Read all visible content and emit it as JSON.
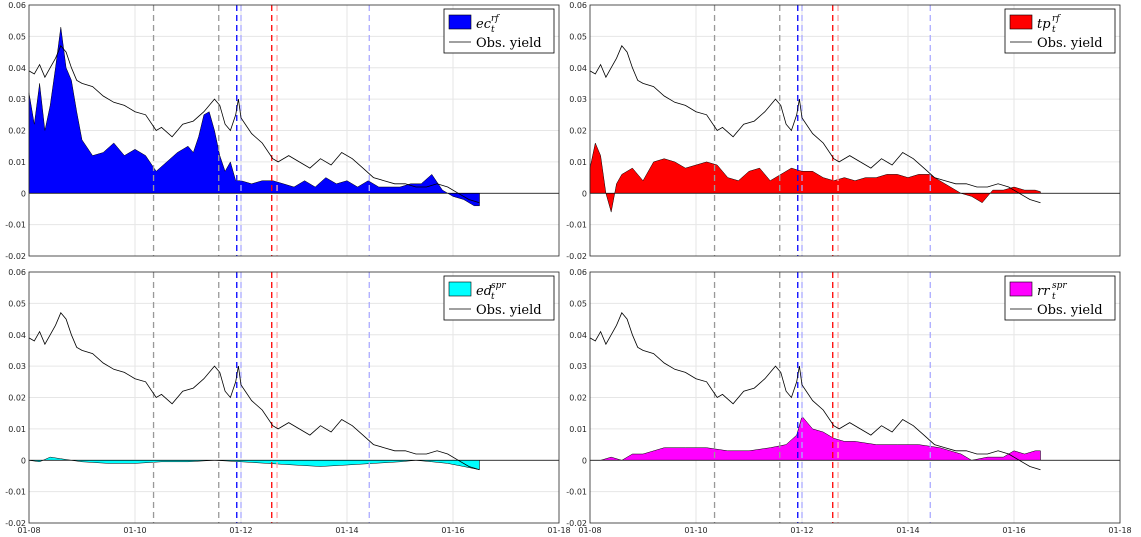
{
  "colors": {
    "ec": "#0000ff",
    "tp": "#ff0000",
    "ed": "#00ffff",
    "rr": "#ff00ff",
    "yield": "#000000"
  },
  "chart_data": [
    {
      "type": "area",
      "key": "ec",
      "legend": [
        {
          "name": "ec",
          "sup": "rf",
          "sub": "t"
        },
        {
          "name": "Obs.  yield"
        }
      ],
      "xlim": [
        "01-08",
        "01-18"
      ],
      "ylim": [
        -0.02,
        0.06
      ],
      "yticks": [
        "0.06",
        "0.05",
        "0.04",
        "0.03",
        "0.02",
        "0.01",
        "0",
        "-0.01",
        "-0.02"
      ],
      "xticks": [],
      "series": [
        {
          "name": "ec",
          "x": [
            2008.0,
            2008.1,
            2008.2,
            2008.3,
            2008.4,
            2008.5,
            2008.6,
            2008.7,
            2008.8,
            2008.9,
            2009.0,
            2009.2,
            2009.4,
            2009.6,
            2009.8,
            2010.0,
            2010.2,
            2010.4,
            2010.6,
            2010.8,
            2011.0,
            2011.1,
            2011.2,
            2011.3,
            2011.4,
            2011.5,
            2011.6,
            2011.7,
            2011.8,
            2011.9,
            2012.0,
            2012.2,
            2012.4,
            2012.6,
            2012.8,
            2013.0,
            2013.2,
            2013.4,
            2013.6,
            2013.8,
            2014.0,
            2014.2,
            2014.4,
            2014.6,
            2014.8,
            2015.0,
            2015.2,
            2015.4,
            2015.6,
            2015.8,
            2016.0,
            2016.2,
            2016.4,
            2016.5
          ],
          "values": [
            0.032,
            0.022,
            0.035,
            0.02,
            0.028,
            0.04,
            0.053,
            0.04,
            0.036,
            0.026,
            0.017,
            0.012,
            0.013,
            0.016,
            0.012,
            0.014,
            0.012,
            0.007,
            0.01,
            0.013,
            0.015,
            0.013,
            0.018,
            0.025,
            0.026,
            0.02,
            0.012,
            0.007,
            0.01,
            0.004,
            0.004,
            0.003,
            0.004,
            0.004,
            0.003,
            0.002,
            0.004,
            0.002,
            0.005,
            0.003,
            0.004,
            0.002,
            0.004,
            0.002,
            0.002,
            0.002,
            0.003,
            0.003,
            0.006,
            0.001,
            -0.001,
            -0.002,
            -0.004,
            -0.004
          ]
        }
      ]
    },
    {
      "type": "area",
      "key": "tp",
      "legend": [
        {
          "name": "tp",
          "sup": "rf",
          "sub": "t"
        },
        {
          "name": "Obs.  yield"
        }
      ],
      "xlim": [
        "01-08",
        "01-18"
      ],
      "ylim": [
        -0.02,
        0.06
      ],
      "yticks": [
        "0.06",
        "0.05",
        "0.04",
        "0.03",
        "0.02",
        "0.01",
        "0",
        "-0.01",
        "-0.02"
      ],
      "xticks": [],
      "series": [
        {
          "name": "tp",
          "x": [
            2008.0,
            2008.1,
            2008.2,
            2008.3,
            2008.4,
            2008.5,
            2008.6,
            2008.8,
            2009.0,
            2009.2,
            2009.4,
            2009.6,
            2009.8,
            2010.0,
            2010.2,
            2010.4,
            2010.6,
            2010.8,
            2011.0,
            2011.2,
            2011.4,
            2011.6,
            2011.8,
            2012.0,
            2012.2,
            2012.4,
            2012.6,
            2012.8,
            2013.0,
            2013.2,
            2013.4,
            2013.6,
            2013.8,
            2014.0,
            2014.2,
            2014.4,
            2014.6,
            2014.8,
            2015.0,
            2015.2,
            2015.4,
            2015.6,
            2015.8,
            2016.0,
            2016.2,
            2016.4,
            2016.5
          ],
          "values": [
            0.008,
            0.016,
            0.012,
            0.0,
            -0.006,
            0.003,
            0.006,
            0.008,
            0.004,
            0.01,
            0.011,
            0.01,
            0.008,
            0.009,
            0.01,
            0.009,
            0.005,
            0.004,
            0.007,
            0.008,
            0.004,
            0.006,
            0.008,
            0.007,
            0.007,
            0.005,
            0.004,
            0.005,
            0.004,
            0.005,
            0.005,
            0.006,
            0.006,
            0.005,
            0.006,
            0.006,
            0.004,
            0.002,
            0.0,
            -0.001,
            -0.003,
            0.001,
            0.001,
            0.002,
            0.001,
            0.001,
            0.0005
          ]
        }
      ]
    },
    {
      "type": "area",
      "key": "ed",
      "legend": [
        {
          "name": "ed",
          "sup": "spr",
          "sub": "t"
        },
        {
          "name": "Obs.  yield"
        }
      ],
      "xlim": [
        "01-08",
        "01-18"
      ],
      "ylim": [
        -0.02,
        0.06
      ],
      "yticks": [
        "0.06",
        "0.05",
        "0.04",
        "0.03",
        "0.02",
        "0.01",
        "0",
        "-0.01",
        "-0.02"
      ],
      "xticks": [
        "01-08",
        "01-10",
        "01-12",
        "01-14",
        "01-16",
        "01-18"
      ],
      "series": [
        {
          "name": "ed",
          "x": [
            2008.0,
            2008.2,
            2008.4,
            2008.6,
            2008.8,
            2009.0,
            2009.5,
            2010.0,
            2010.5,
            2011.0,
            2011.5,
            2012.0,
            2012.5,
            2013.0,
            2013.5,
            2014.0,
            2014.5,
            2015.0,
            2015.3,
            2015.6,
            2015.9,
            2016.2,
            2016.5
          ],
          "values": [
            0.0,
            -0.0005,
            0.001,
            0.0005,
            0.0,
            -0.0005,
            -0.001,
            -0.001,
            -0.0005,
            -0.0005,
            0.0,
            -0.0005,
            -0.001,
            -0.0015,
            -0.002,
            -0.0015,
            -0.001,
            -0.0005,
            0.0,
            -0.0005,
            -0.001,
            -0.002,
            -0.003
          ]
        }
      ]
    },
    {
      "type": "area",
      "key": "rr",
      "legend": [
        {
          "name": "rr",
          "sup": "spr",
          "sub": "t"
        },
        {
          "name": "Obs.  yield"
        }
      ],
      "xlim": [
        "01-08",
        "01-18"
      ],
      "ylim": [
        -0.02,
        0.06
      ],
      "yticks": [
        "0.06",
        "0.05",
        "0.04",
        "0.03",
        "0.02",
        "0.01",
        "0",
        "-0.01",
        "-0.02"
      ],
      "xticks": [
        "01-08",
        "01-10",
        "01-12",
        "01-14",
        "01-16",
        "01-18"
      ],
      "series": [
        {
          "name": "rr",
          "x": [
            2008.0,
            2008.2,
            2008.4,
            2008.6,
            2008.8,
            2009.0,
            2009.4,
            2009.8,
            2010.2,
            2010.6,
            2011.0,
            2011.4,
            2011.7,
            2011.9,
            2012.0,
            2012.2,
            2012.4,
            2012.6,
            2012.8,
            2013.0,
            2013.4,
            2013.8,
            2014.2,
            2014.6,
            2015.0,
            2015.2,
            2015.5,
            2015.8,
            2016.0,
            2016.2,
            2016.4,
            2016.5
          ],
          "values": [
            0.0,
            0.0,
            0.001,
            0.0,
            0.002,
            0.002,
            0.004,
            0.004,
            0.004,
            0.003,
            0.003,
            0.004,
            0.005,
            0.008,
            0.014,
            0.01,
            0.009,
            0.007,
            0.006,
            0.006,
            0.005,
            0.005,
            0.005,
            0.004,
            0.002,
            0.0,
            0.001,
            0.001,
            0.003,
            0.002,
            0.003,
            0.003
          ]
        }
      ]
    }
  ],
  "obs_yield": {
    "name": "Obs.  yield",
    "x": [
      2008.0,
      2008.1,
      2008.2,
      2008.3,
      2008.4,
      2008.5,
      2008.6,
      2008.7,
      2008.8,
      2008.9,
      2009.0,
      2009.2,
      2009.4,
      2009.6,
      2009.8,
      2010.0,
      2010.2,
      2010.4,
      2010.5,
      2010.7,
      2010.9,
      2011.1,
      2011.3,
      2011.5,
      2011.6,
      2011.7,
      2011.8,
      2011.9,
      2011.95,
      2012.0,
      2012.2,
      2012.4,
      2012.6,
      2012.7,
      2012.9,
      2013.1,
      2013.3,
      2013.5,
      2013.7,
      2013.9,
      2014.1,
      2014.3,
      2014.5,
      2014.7,
      2014.9,
      2015.1,
      2015.3,
      2015.5,
      2015.7,
      2015.9,
      2016.1,
      2016.3,
      2016.5
    ],
    "values": [
      0.039,
      0.038,
      0.041,
      0.037,
      0.04,
      0.043,
      0.047,
      0.045,
      0.04,
      0.036,
      0.035,
      0.034,
      0.031,
      0.029,
      0.028,
      0.026,
      0.025,
      0.02,
      0.021,
      0.018,
      0.022,
      0.023,
      0.026,
      0.03,
      0.028,
      0.022,
      0.02,
      0.025,
      0.03,
      0.024,
      0.019,
      0.016,
      0.011,
      0.01,
      0.012,
      0.01,
      0.008,
      0.011,
      0.009,
      0.013,
      0.011,
      0.008,
      0.005,
      0.004,
      0.003,
      0.003,
      0.002,
      0.002,
      0.003,
      0.002,
      0.0,
      -0.002,
      -0.003
    ]
  },
  "vlines": [
    {
      "x": 2010.35,
      "color": "#999999"
    },
    {
      "x": 2011.58,
      "color": "#999999"
    },
    {
      "x": 2011.92,
      "color": "#0000ff"
    },
    {
      "x": 2012.0,
      "color": "#aaaaff"
    },
    {
      "x": 2012.58,
      "color": "#ff0000"
    },
    {
      "x": 2012.68,
      "color": "#ffaaaa"
    },
    {
      "x": 2014.42,
      "color": "#aaaaff"
    }
  ]
}
